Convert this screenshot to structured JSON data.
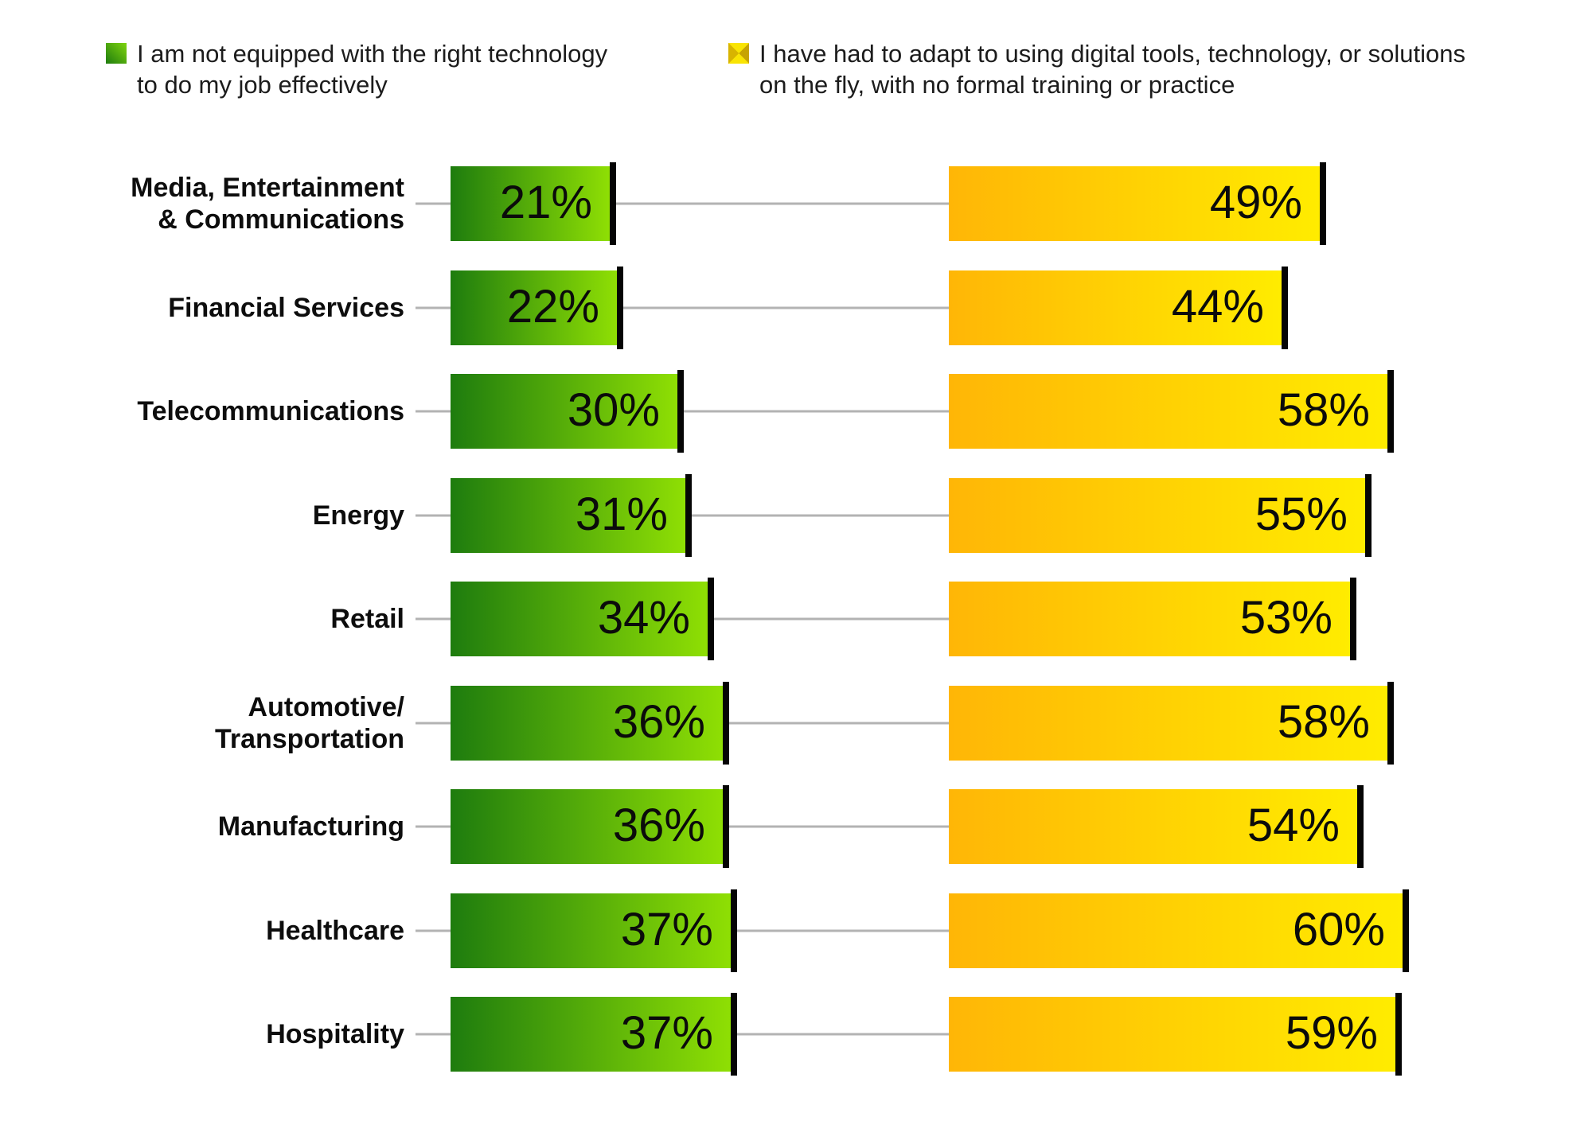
{
  "legend": [
    {
      "label": "I am not equipped with the right technology to do my job effectively",
      "swatch_icon": "green-gradient-square",
      "color_start": "#1e7c0e",
      "color_end": "#8fdf04"
    },
    {
      "label": "I have had to adapt to using digital tools, technology, or solutions on the fly, with no formal training or practice",
      "swatch_icon": "yellow-cross-square",
      "color_start": "#ffb606",
      "color_end": "#ffec00"
    }
  ],
  "chart_data": {
    "type": "bar",
    "orientation": "horizontal",
    "unit": "%",
    "title": "",
    "xlabel": "",
    "ylabel": "",
    "xlim": [
      0,
      62
    ],
    "grid": false,
    "axes_visible": false,
    "legend_position": "top",
    "value_label_position": "inside-right",
    "bar_end_cap_color": "#050505",
    "leader_line_color": "#b3b3b3",
    "categories": [
      "Media, Entertainment & Communications",
      "Financial Services",
      "Telecommunications",
      "Energy",
      "Retail",
      "Automotive/Transportation",
      "Manufacturing",
      "Healthcare",
      "Hospitality"
    ],
    "category_display_lines": [
      [
        "Media, Entertainment",
        "& Communications"
      ],
      [
        "Financial Services"
      ],
      [
        "Telecommunications"
      ],
      [
        "Energy"
      ],
      [
        "Retail"
      ],
      [
        "Automotive/",
        "Transportation"
      ],
      [
        "Manufacturing"
      ],
      [
        "Healthcare"
      ],
      [
        "Hospitality"
      ]
    ],
    "series": [
      {
        "name": "I am not equipped with the right technology to do my job effectively",
        "values": [
          21,
          22,
          30,
          31,
          34,
          36,
          36,
          37,
          37
        ],
        "color_start": "#1e7c0e",
        "color_end": "#8fdf04"
      },
      {
        "name": "I have had to adapt to using digital tools, technology, or solutions on the fly, with no formal training or practice",
        "values": [
          49,
          44,
          58,
          55,
          53,
          58,
          54,
          60,
          59
        ],
        "color_start": "#ffb606",
        "color_end": "#ffec00"
      }
    ]
  }
}
